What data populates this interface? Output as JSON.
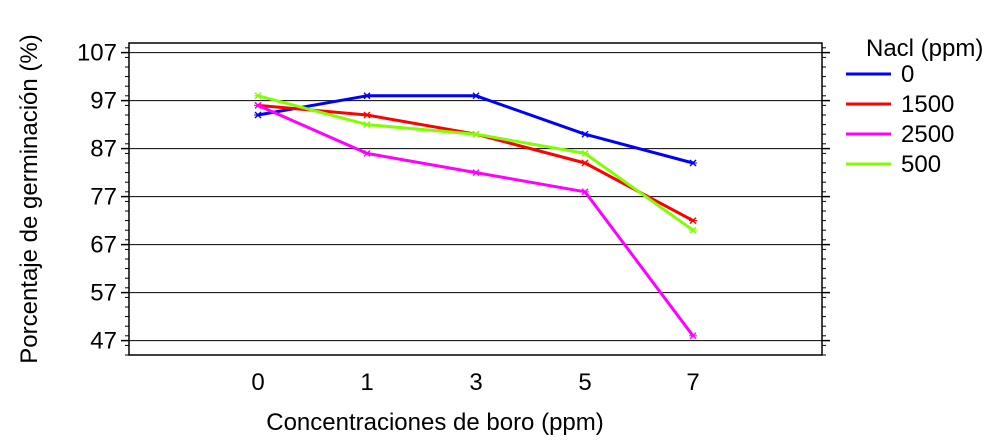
{
  "chart_data": {
    "type": "line",
    "xlabel": "Concentraciones de boro (ppm)",
    "ylabel": "Porcentaje de germinación (%)",
    "categories": [
      "0",
      "1",
      "3",
      "5",
      "7"
    ],
    "ylim": [
      44,
      109
    ],
    "yticks": [
      47,
      57,
      67,
      77,
      87,
      97,
      107
    ],
    "yticks_labels": [
      "47",
      "57",
      "67",
      "77",
      "87",
      "97",
      "107"
    ],
    "grid": "horizontal",
    "legend": {
      "title": "Nacl (ppm)",
      "placement": "right"
    },
    "series": [
      {
        "name": "0",
        "color": "#0000ff",
        "values": [
          94,
          98,
          98,
          90,
          84
        ]
      },
      {
        "name": "1500",
        "color": "#ff0000",
        "values": [
          96,
          94,
          90,
          84,
          72
        ]
      },
      {
        "name": "2500",
        "color": "#ff00ff",
        "values": [
          96,
          86,
          82,
          78,
          48
        ]
      },
      {
        "name": "500",
        "color": "#80ff00",
        "values": [
          98,
          92,
          90,
          86,
          70
        ]
      }
    ]
  }
}
